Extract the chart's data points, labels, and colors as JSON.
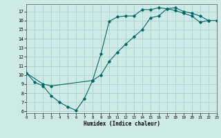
{
  "xlabel": "Humidex (Indice chaleur)",
  "bg_color": "#ceeae6",
  "grid_color": "#aacfcb",
  "line_color": "#006666",
  "line1_x": [
    0,
    1,
    2,
    3,
    4,
    5,
    6,
    7,
    8,
    9,
    10,
    11,
    12,
    13,
    14,
    15,
    16,
    17,
    18,
    19,
    20,
    21,
    22
  ],
  "line1_y": [
    10.2,
    9.2,
    8.8,
    7.7,
    7.0,
    6.5,
    6.1,
    7.4,
    9.4,
    12.3,
    15.9,
    16.4,
    16.5,
    16.5,
    17.2,
    17.2,
    17.4,
    17.3,
    17.1,
    16.8,
    16.5,
    15.8,
    16.0
  ],
  "line2_x": [
    0,
    2,
    3,
    8,
    9,
    10,
    11,
    12,
    13,
    14,
    15,
    16,
    17,
    18,
    19,
    20,
    21,
    22,
    23
  ],
  "line2_y": [
    10.2,
    9.0,
    8.8,
    9.4,
    10.0,
    11.5,
    12.5,
    13.4,
    14.2,
    15.0,
    16.3,
    16.5,
    17.3,
    17.4,
    17.0,
    16.8,
    16.5,
    16.0,
    16.0
  ],
  "xlim": [
    0,
    23
  ],
  "ylim": [
    5.8,
    17.8
  ],
  "yticks": [
    6,
    7,
    8,
    9,
    10,
    11,
    12,
    13,
    14,
    15,
    16,
    17
  ],
  "xticks": [
    0,
    1,
    2,
    3,
    4,
    5,
    6,
    7,
    8,
    9,
    10,
    11,
    12,
    13,
    14,
    15,
    16,
    17,
    18,
    19,
    20,
    21,
    22,
    23
  ]
}
